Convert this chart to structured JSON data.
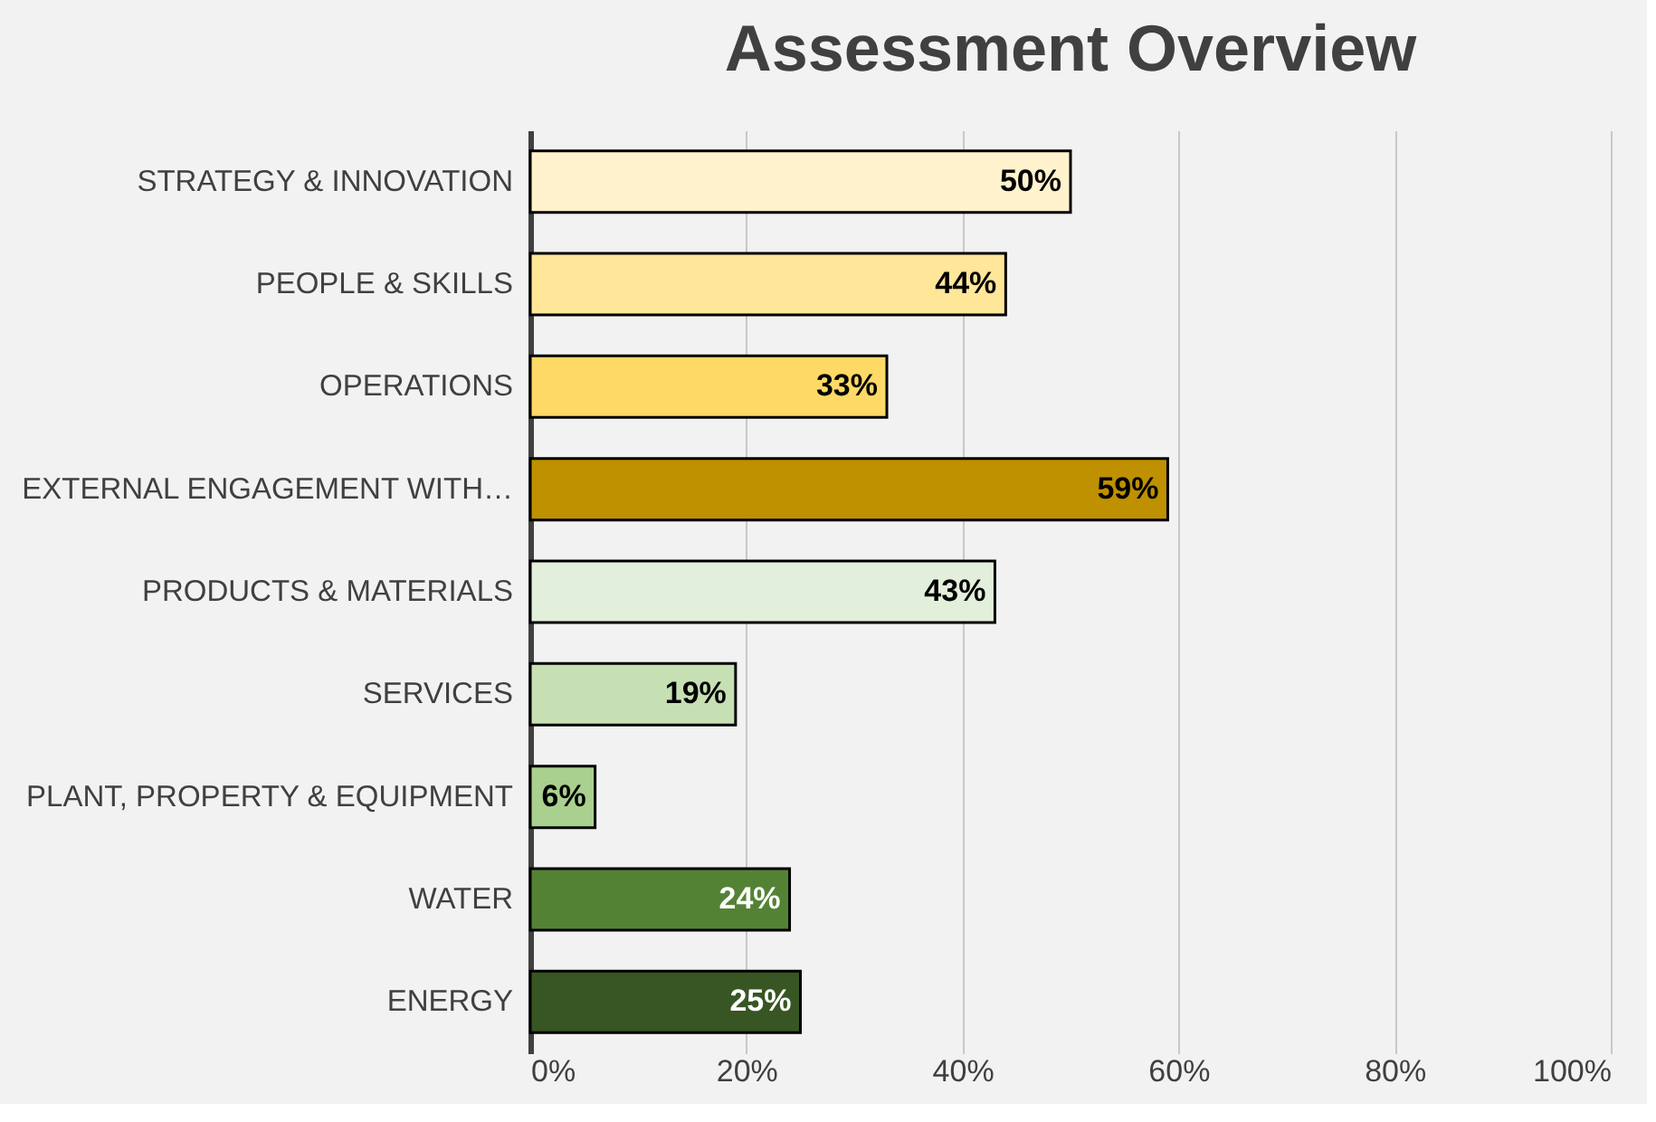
{
  "chart_data": {
    "type": "bar",
    "orientation": "horizontal",
    "title": "Assessment Overview",
    "categories": [
      "STRATEGY & INNOVATION",
      "PEOPLE & SKILLS",
      "OPERATIONS",
      "EXTERNAL ENGAGEMENT WITH…",
      "PRODUCTS & MATERIALS",
      "SERVICES",
      "PLANT, PROPERTY & EQUIPMENT",
      "WATER",
      "ENERGY"
    ],
    "values": [
      50,
      44,
      33,
      59,
      43,
      19,
      6,
      24,
      25
    ],
    "colors": [
      "#fff2cc",
      "#ffe699",
      "#ffd966",
      "#bf9000",
      "#e2efda",
      "#c6e0b4",
      "#a9d08e",
      "#548235",
      "#375623"
    ],
    "value_labels": [
      "50%",
      "44%",
      "33%",
      "59%",
      "43%",
      "19%",
      "6%",
      "24%",
      "25%"
    ],
    "xlim": [
      0,
      100
    ],
    "xticks": [
      {
        "value": 0,
        "label": "0%"
      },
      {
        "value": 20,
        "label": "20%"
      },
      {
        "value": 40,
        "label": "40%"
      },
      {
        "value": 60,
        "label": "60%"
      },
      {
        "value": 80,
        "label": "80%"
      },
      {
        "value": 100,
        "label": "100%"
      }
    ],
    "grid": "x"
  }
}
